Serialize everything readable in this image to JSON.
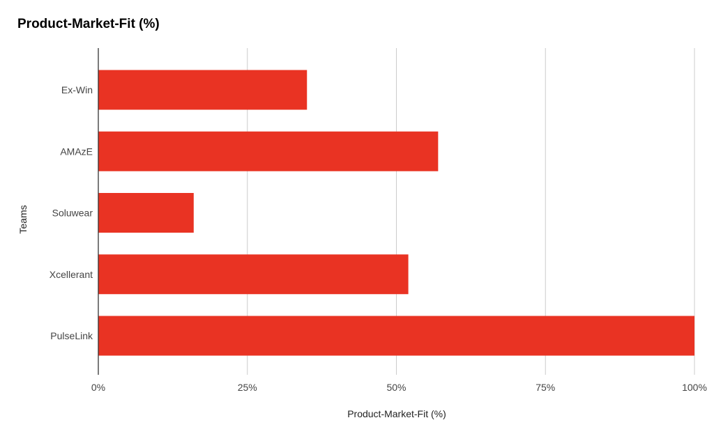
{
  "chart_data": {
    "type": "bar",
    "orientation": "horizontal",
    "title": "Product-Market-Fit (%)",
    "xlabel": "Product-Market-Fit (%)",
    "ylabel": "Teams",
    "categories": [
      "Ex-Win",
      "AMAzE",
      "Soluwear",
      "Xcellerant",
      "PulseLink"
    ],
    "values": [
      35,
      57,
      16,
      52,
      100
    ],
    "xlim": [
      0,
      100
    ],
    "xticks": [
      "0%",
      "25%",
      "50%",
      "75%",
      "100%"
    ],
    "grid": true,
    "legend": "none",
    "colors": {
      "bar": "#e93323",
      "grid": "#cccccc",
      "axis": "#333333"
    }
  }
}
